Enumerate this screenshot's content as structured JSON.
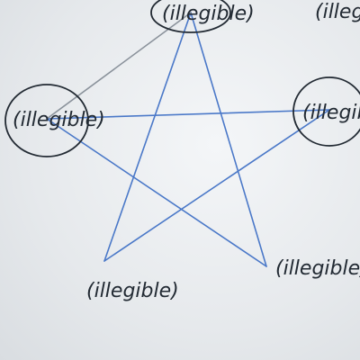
{
  "diagram": {
    "kind": "pentagram",
    "edge_colors": {
      "blue": "#4a78c8",
      "gray": "#8a929b"
    },
    "ink_color": "#222a33",
    "nodes": [
      {
        "id": "top",
        "label": "(illegible)",
        "circled": true
      },
      {
        "id": "left",
        "label": "(illegible)",
        "circled": true
      },
      {
        "id": "right",
        "label": "(illegible)",
        "circled": true
      },
      {
        "id": "bottom-right",
        "label": "(illegible)",
        "circled": false
      },
      {
        "id": "bottom-left",
        "label": "(illegible)",
        "circled": false
      },
      {
        "id": "corner",
        "label": "(illegible)",
        "circled": false
      }
    ],
    "edges": [
      {
        "from": "top",
        "to": "bottom-right",
        "color": "blue"
      },
      {
        "from": "top",
        "to": "bottom-left",
        "color": "blue"
      },
      {
        "from": "left",
        "to": "right",
        "color": "blue"
      },
      {
        "from": "left",
        "to": "bottom-right",
        "color": "blue"
      },
      {
        "from": "right",
        "to": "bottom-left",
        "color": "blue"
      },
      {
        "from": "left",
        "to": "top",
        "color": "gray"
      }
    ]
  }
}
